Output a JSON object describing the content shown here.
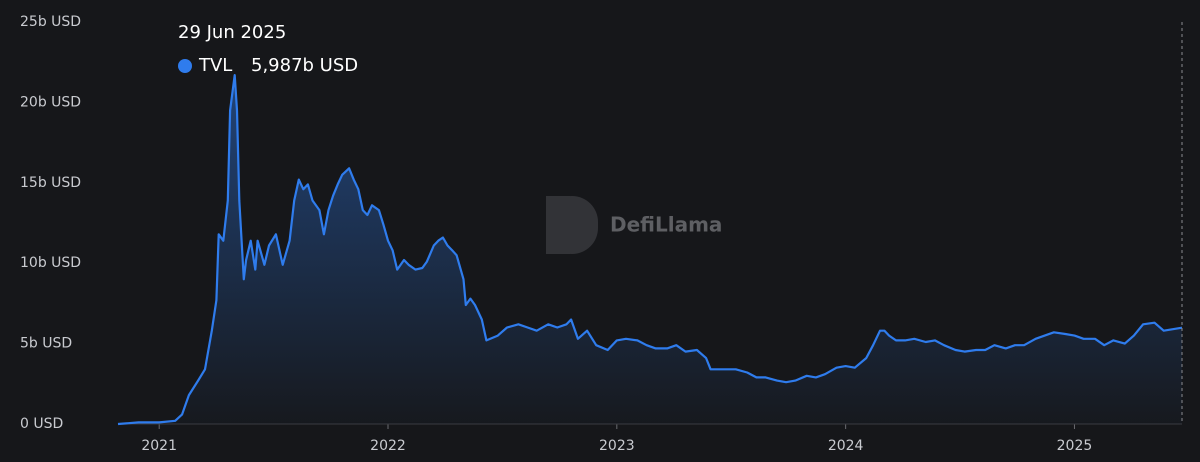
{
  "chart_data": {
    "type": "area",
    "tooltip_date": "29 Jun 2025",
    "tooltip_series": "TVL",
    "tooltip_value": "5,987b USD",
    "watermark": "DefiLlama",
    "xlim": [
      2020.82,
      2025.47
    ],
    "xticks": [
      2021,
      2022,
      2023,
      2024,
      2025
    ],
    "ylim": [
      0,
      25
    ],
    "yticks": [
      {
        "value": 0,
        "label": "0 USD"
      },
      {
        "value": 5,
        "label": "5b USD"
      },
      {
        "value": 10,
        "label": "10b USD"
      },
      {
        "value": 15,
        "label": "15b USD"
      },
      {
        "value": 20,
        "label": "20b USD"
      },
      {
        "value": 25,
        "label": "25b USD"
      }
    ],
    "grid": false,
    "series": [
      {
        "name": "TVL",
        "color": "#2f7ced",
        "x": [
          2020.82,
          2020.91,
          2021.0,
          2021.07,
          2021.1,
          2021.13,
          2021.17,
          2021.2,
          2021.23,
          2021.25,
          2021.26,
          2021.28,
          2021.3,
          2021.31,
          2021.33,
          2021.34,
          2021.35,
          2021.37,
          2021.38,
          2021.4,
          2021.42,
          2021.43,
          2021.46,
          2021.48,
          2021.51,
          2021.54,
          2021.57,
          2021.59,
          2021.61,
          2021.63,
          2021.65,
          2021.67,
          2021.7,
          2021.72,
          2021.74,
          2021.76,
          2021.78,
          2021.8,
          2021.83,
          2021.85,
          2021.87,
          2021.89,
          2021.91,
          2021.93,
          2021.96,
          2021.98,
          2022.0,
          2022.02,
          2022.04,
          2022.07,
          2022.09,
          2022.12,
          2022.15,
          2022.17,
          2022.2,
          2022.22,
          2022.24,
          2022.26,
          2022.28,
          2022.3,
          2022.33,
          2022.34,
          2022.36,
          2022.38,
          2022.41,
          2022.43,
          2022.48,
          2022.52,
          2022.57,
          2022.61,
          2022.65,
          2022.7,
          2022.74,
          2022.78,
          2022.8,
          2022.83,
          2022.87,
          2022.91,
          2022.96,
          2023.0,
          2023.04,
          2023.09,
          2023.13,
          2023.17,
          2023.22,
          2023.26,
          2023.3,
          2023.35,
          2023.39,
          2023.41,
          2023.46,
          2023.52,
          2023.57,
          2023.61,
          2023.65,
          2023.7,
          2023.74,
          2023.78,
          2023.83,
          2023.87,
          2023.91,
          2023.96,
          2024.0,
          2024.04,
          2024.09,
          2024.12,
          2024.15,
          2024.17,
          2024.19,
          2024.22,
          2024.26,
          2024.3,
          2024.35,
          2024.39,
          2024.43,
          2024.48,
          2024.52,
          2024.57,
          2024.61,
          2024.65,
          2024.7,
          2024.74,
          2024.78,
          2024.83,
          2024.87,
          2024.91,
          2024.96,
          2025.0,
          2025.04,
          2025.09,
          2025.13,
          2025.17,
          2025.22,
          2025.26,
          2025.3,
          2025.35,
          2025.39,
          2025.47
        ],
        "values": [
          0,
          0.1,
          0.1,
          0.2,
          0.6,
          1.8,
          2.7,
          3.4,
          5.8,
          7.7,
          11.8,
          11.4,
          13.9,
          19.5,
          21.7,
          19.5,
          13.9,
          9.0,
          10.2,
          11.4,
          9.6,
          11.4,
          9.9,
          11.1,
          11.8,
          9.9,
          11.4,
          13.9,
          15.2,
          14.6,
          14.9,
          13.9,
          13.3,
          11.8,
          13.3,
          14.2,
          14.9,
          15.5,
          15.9,
          15.2,
          14.6,
          13.3,
          13.0,
          13.6,
          13.3,
          12.4,
          11.4,
          10.8,
          9.6,
          10.2,
          9.9,
          9.6,
          9.7,
          10.1,
          11.1,
          11.4,
          11.6,
          11.1,
          10.8,
          10.5,
          9.0,
          7.4,
          7.8,
          7.4,
          6.5,
          5.2,
          5.5,
          6.0,
          6.2,
          6.0,
          5.8,
          6.2,
          6.0,
          6.2,
          6.5,
          5.3,
          5.8,
          4.9,
          4.6,
          5.2,
          5.3,
          5.2,
          4.9,
          4.7,
          4.7,
          4.9,
          4.5,
          4.6,
          4.1,
          3.4,
          3.4,
          3.4,
          3.2,
          2.9,
          2.9,
          2.7,
          2.6,
          2.7,
          3.0,
          2.9,
          3.1,
          3.5,
          3.6,
          3.5,
          4.1,
          4.9,
          5.8,
          5.8,
          5.5,
          5.2,
          5.2,
          5.3,
          5.1,
          5.2,
          4.9,
          4.6,
          4.5,
          4.6,
          4.6,
          4.9,
          4.7,
          4.9,
          4.9,
          5.3,
          5.5,
          5.7,
          5.6,
          5.5,
          5.3,
          5.3,
          4.9,
          5.2,
          5.0,
          5.5,
          6.2,
          6.3,
          5.8,
          5.99
        ]
      }
    ]
  }
}
